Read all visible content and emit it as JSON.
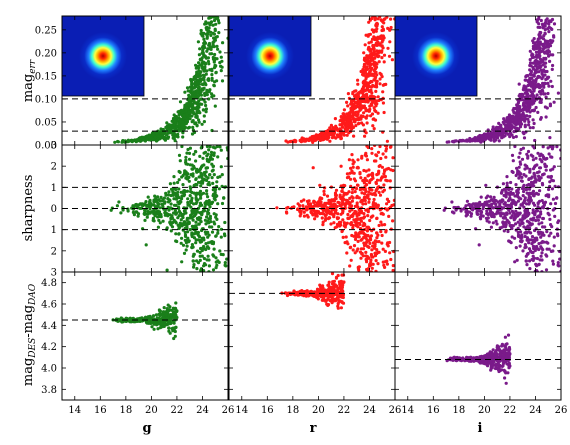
{
  "chart_data": {
    "type": "scatter",
    "layout": "3x3 grid of scatter panels sharing x axis per column and y axis per row",
    "columns": [
      {
        "band": "g",
        "color": "#1a7f1a"
      },
      {
        "band": "r",
        "color": "#ff1a1a"
      },
      {
        "band": "i",
        "color": "#7a1a8a"
      }
    ],
    "x_axis": {
      "range": [
        13,
        26
      ],
      "ticks": [
        "14",
        "16",
        "18",
        "20",
        "22",
        "24",
        "26"
      ]
    },
    "rows": [
      {
        "key": "mag_err",
        "ylabel_main": "mag",
        "ylabel_sub": "err",
        "ylim": [
          0,
          0.28
        ],
        "ticks": [
          "0.00",
          "0.05",
          "0.10",
          "0.15",
          "0.20",
          "0.25"
        ],
        "reference_lines": [
          0.03,
          0.1
        ],
        "inset": "PSF image (blue background, red/yellow/cyan radial core)"
      },
      {
        "key": "sharpness",
        "ylabel": "sharpness",
        "ylim": [
          -3,
          3
        ],
        "ticks": [
          "3",
          "2",
          "1",
          "0",
          "1",
          "2",
          "3"
        ],
        "reference_lines": [
          -1,
          0,
          1
        ]
      },
      {
        "key": "mag_diff",
        "ylabel_a": "mag",
        "ylabel_a_sub": "DES",
        "ylabel_sep": "-mag",
        "ylabel_b_sub": "DAO",
        "ylim": [
          3.7,
          4.9
        ],
        "ticks": [
          "3.8",
          "4.0",
          "4.2",
          "4.4",
          "4.6",
          "4.8"
        ]
      }
    ],
    "mag_diff_offsets": {
      "g": 4.45,
      "r": 4.7,
      "i": 4.08
    },
    "grid": false,
    "legend": "none"
  }
}
